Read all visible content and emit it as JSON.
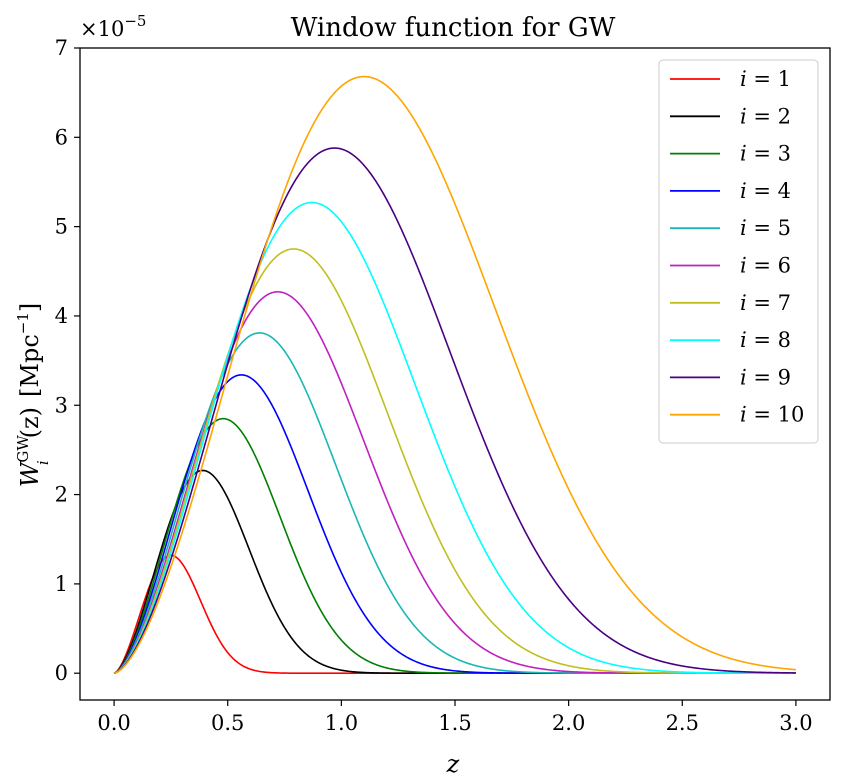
{
  "chart_data": {
    "type": "line",
    "title": "Window function for GW",
    "xlabel": "z",
    "ylabel": "W_i^GW(z) [Mpc^-1]",
    "ylabel_parts": {
      "symbol": "W",
      "superscript": "GW",
      "subscript": "i",
      "argument": "(z)",
      "unit_open": "[Mpc",
      "unit_exp": "−1",
      "unit_close": "]"
    },
    "y_scale_label": {
      "base": "×10",
      "exponent": "−5"
    },
    "xlim": [
      -0.15,
      3.15
    ],
    "ylim": [
      -0.3,
      7.0
    ],
    "xticks": [
      0.0,
      0.5,
      1.0,
      1.5,
      2.0,
      2.5,
      3.0
    ],
    "xtick_labels": [
      "0.0",
      "0.5",
      "1.0",
      "1.5",
      "2.0",
      "2.5",
      "3.0"
    ],
    "yticks": [
      0,
      1,
      2,
      3,
      4,
      5,
      6,
      7
    ],
    "ytick_labels": [
      "0",
      "1",
      "2",
      "3",
      "4",
      "5",
      "6",
      "7"
    ],
    "legend_position": "top-right",
    "grid": false,
    "series": [
      {
        "name": "i = 1",
        "label_var": "i",
        "label_value": "1",
        "color": "#ff0000",
        "peak_x": 0.25,
        "peak_y": 1.32
      },
      {
        "name": "i = 2",
        "label_var": "i",
        "label_value": "2",
        "color": "#000000",
        "peak_x": 0.39,
        "peak_y": 2.27
      },
      {
        "name": "i = 3",
        "label_var": "i",
        "label_value": "3",
        "color": "#008000",
        "peak_x": 0.48,
        "peak_y": 2.85
      },
      {
        "name": "i = 4",
        "label_var": "i",
        "label_value": "4",
        "color": "#0000ff",
        "peak_x": 0.56,
        "peak_y": 3.34
      },
      {
        "name": "i = 5",
        "label_var": "i",
        "label_value": "5",
        "color": "#1ab7b7",
        "peak_x": 0.64,
        "peak_y": 3.81
      },
      {
        "name": "i = 6",
        "label_var": "i",
        "label_value": "6",
        "color": "#c020c0",
        "peak_x": 0.72,
        "peak_y": 4.27
      },
      {
        "name": "i = 7",
        "label_var": "i",
        "label_value": "7",
        "color": "#bfbf1f",
        "peak_x": 0.79,
        "peak_y": 4.75
      },
      {
        "name": "i = 8",
        "label_var": "i",
        "label_value": "8",
        "color": "#00ffff",
        "peak_x": 0.87,
        "peak_y": 5.27
      },
      {
        "name": "i = 9",
        "label_var": "i",
        "label_value": "9",
        "color": "#4b0082",
        "peak_x": 0.97,
        "peak_y": 5.88
      },
      {
        "name": "i = 10",
        "label_var": "i",
        "label_value": "10",
        "color": "#ffa500",
        "peak_x": 1.1,
        "peak_y": 6.68
      }
    ]
  }
}
